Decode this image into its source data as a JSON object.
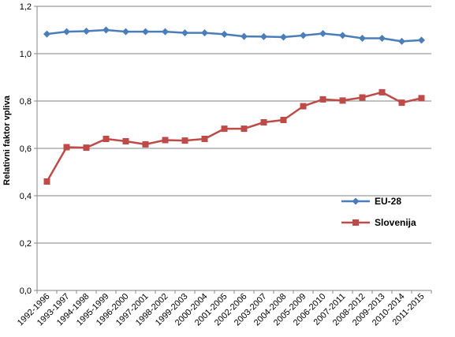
{
  "chart_data": {
    "type": "line",
    "title": "",
    "xlabel": "",
    "ylabel": "Relativni faktor vpliva",
    "ylim": [
      0,
      1.2
    ],
    "yticks": [
      "0,0",
      "0,2",
      "0,4",
      "0,6",
      "0,8",
      "1,0",
      "1,2"
    ],
    "grid": true,
    "legend_position": "right",
    "categories": [
      "1992-1996",
      "1993-1997",
      "1994-1998",
      "1995-1999",
      "1996-2000",
      "1997-2001",
      "1998-2002",
      "1999-2003",
      "2000-2004",
      "2001-2005",
      "2002-2006",
      "2003-2007",
      "2004-2008",
      "2005-2009",
      "2006-2010",
      "2007-2011",
      "2008-2012",
      "2009-2013",
      "2010-2014",
      "2011-2015"
    ],
    "series": [
      {
        "name": "EU-28",
        "color": "#4a7ebb",
        "marker": "diamond",
        "values": [
          1.083,
          1.093,
          1.095,
          1.1,
          1.093,
          1.093,
          1.093,
          1.088,
          1.088,
          1.082,
          1.073,
          1.072,
          1.07,
          1.077,
          1.085,
          1.077,
          1.065,
          1.065,
          1.052,
          1.057
        ]
      },
      {
        "name": "Slovenija",
        "color": "#be4b48",
        "marker": "square",
        "values": [
          0.46,
          0.605,
          0.603,
          0.64,
          0.63,
          0.617,
          0.635,
          0.633,
          0.64,
          0.683,
          0.683,
          0.71,
          0.72,
          0.778,
          0.807,
          0.802,
          0.815,
          0.837,
          0.793,
          0.812
        ]
      }
    ]
  }
}
